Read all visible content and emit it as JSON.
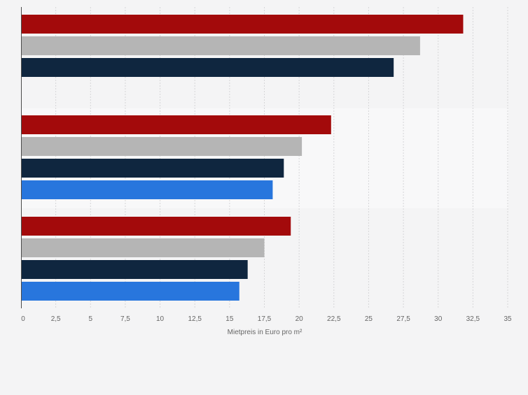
{
  "chart_data": {
    "type": "bar",
    "orientation": "horizontal",
    "title": "",
    "xlabel": "Mietpreis in Euro pro m²",
    "ylabel": "",
    "xlim": [
      0,
      35
    ],
    "x_ticks": [
      "0",
      "2,5",
      "5",
      "7,5",
      "10",
      "12,5",
      "15",
      "17,5",
      "20",
      "22,5",
      "25",
      "27,5",
      "30",
      "32,5",
      "35"
    ],
    "grid": true,
    "legend": "none",
    "groups": [
      {
        "label": "",
        "bars": [
          {
            "value": 31.8,
            "color": "#a30a0b"
          },
          {
            "value": 28.7,
            "color": "#b5b5b5"
          },
          {
            "value": 26.8,
            "color": "#0f263f"
          }
        ]
      },
      {
        "label": "",
        "bars": [
          {
            "value": 22.3,
            "color": "#a30a0b"
          },
          {
            "value": 20.2,
            "color": "#b5b5b5"
          },
          {
            "value": 18.9,
            "color": "#0f263f"
          },
          {
            "value": 18.1,
            "color": "#2876dd"
          }
        ]
      },
      {
        "label": "",
        "bars": [
          {
            "value": 19.4,
            "color": "#a30a0b"
          },
          {
            "value": 17.5,
            "color": "#b5b5b5"
          },
          {
            "value": 16.3,
            "color": "#0f263f"
          },
          {
            "value": 15.7,
            "color": "#2876dd"
          }
        ]
      }
    ]
  }
}
